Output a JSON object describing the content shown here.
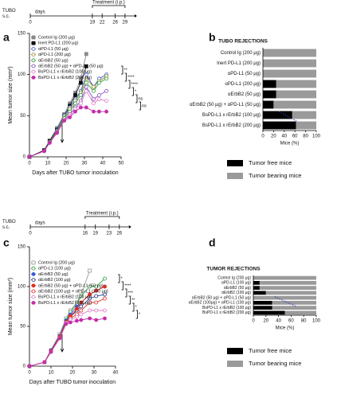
{
  "chart_data": [
    {
      "type": "line",
      "panel": "a",
      "timeline": {
        "start_label": "TUBO\ns.c.",
        "unit": "days",
        "treatment": "Treatment (i.p.)",
        "days": [
          0,
          19,
          22,
          26,
          29
        ]
      },
      "xlabel": "Days after TUBO tumor inoculation",
      "ylabel": "Mean tumor size (mm²)",
      "xlim": [
        0,
        50
      ],
      "xticks": [
        0,
        10,
        20,
        30,
        40,
        50
      ],
      "ylim": [
        0,
        150
      ],
      "yticks": [
        0,
        50,
        100,
        150
      ],
      "x": [
        0,
        8,
        11,
        15,
        19,
        22,
        25,
        28,
        31,
        35,
        38,
        42
      ],
      "series": [
        {
          "name": "Control Ig (200 μg)",
          "color": "#888888",
          "marker": "square",
          "filled": true,
          "values": [
            0,
            8,
            20,
            35,
            52,
            65,
            78,
            95,
            125,
            null,
            null,
            null
          ]
        },
        {
          "name": "Inert PD-L1 (200 μg)",
          "color": "#111111",
          "marker": "square",
          "filled": true,
          "values": [
            0,
            8,
            19,
            33,
            50,
            62,
            75,
            90,
            110,
            null,
            null,
            null
          ]
        },
        {
          "name": "αPD-L1 (50 μg)",
          "color": "#3b5bd6",
          "marker": "circle",
          "filled": false,
          "values": [
            0,
            7,
            18,
            32,
            50,
            60,
            70,
            80,
            100,
            85,
            95,
            100
          ]
        },
        {
          "name": "αPD-L1 (200 μg)",
          "color": "#9a8a2a",
          "marker": "circle",
          "filled": false,
          "values": [
            0,
            7,
            18,
            31,
            48,
            58,
            68,
            78,
            95,
            85,
            92,
            98
          ]
        },
        {
          "name": "αErbB2 (50 μg)",
          "color": "#2e9e3e",
          "marker": "circle",
          "filled": false,
          "values": [
            0,
            7,
            18,
            30,
            47,
            55,
            65,
            75,
            90,
            80,
            90,
            95
          ]
        },
        {
          "name": "αErbB2 (50 μg) + αPD-L1 (50 μg)",
          "color": "#8a4fc0",
          "marker": "circle",
          "filled": false,
          "values": [
            0,
            7,
            17,
            30,
            45,
            52,
            60,
            68,
            85,
            70,
            75,
            80
          ]
        },
        {
          "name": "BsPD-L1 x rErbB2 (100 μg)",
          "color": "#e07ac8",
          "marker": "circle",
          "filled": false,
          "values": [
            0,
            7,
            17,
            29,
            45,
            50,
            58,
            65,
            80,
            65,
            70,
            68
          ]
        },
        {
          "name": "BsPD-L1 x rErbB2 (200 μg)",
          "color": "#c42fa8",
          "marker": "circle",
          "filled": true,
          "values": [
            0,
            7,
            17,
            29,
            44,
            48,
            55,
            60,
            60,
            55,
            55,
            55
          ]
        }
      ],
      "annotations": [
        "**",
        "****",
        "****",
        "*",
        "ns",
        "ns"
      ]
    },
    {
      "type": "barh",
      "panel": "b",
      "title": "TUBO REJECTIONS",
      "xlabel": "Mice (%)",
      "xlim": [
        0,
        100
      ],
      "xticks": [
        0,
        20,
        40,
        60,
        80,
        100
      ],
      "categories": [
        "Control Ig (200 μg)",
        "Inert PD-L1 (200 μg)",
        "αPD-L1 (50 μg)",
        "αPD-L1 (200 μg)",
        "αErbB2 (50 μg)",
        "αErbB2 (50 μg) + αPD-L1 (50 μg)",
        "BsPD-L1 x rErbB2 (100 μg)",
        "BsPD-L1 x rErbB2 (200 μg)"
      ],
      "series": [
        {
          "name": "Tumor free mice",
          "color": "#000000",
          "values": [
            0,
            0,
            0,
            25,
            25,
            20,
            55,
            62
          ]
        },
        {
          "name": "Tumor bearing mice",
          "color": "#9a9a9a",
          "values": [
            100,
            100,
            100,
            75,
            75,
            80,
            45,
            38
          ]
        }
      ]
    },
    {
      "type": "line",
      "panel": "c",
      "timeline": {
        "start_label": "TUBO\ns.c.",
        "unit": "days",
        "treatment": "Treatment (i.p.)",
        "days": [
          0,
          16,
          19,
          23,
          26
        ]
      },
      "xlabel": "Days after TUBO tumor inoculation",
      "ylabel": "Mean tumor size (mm²)",
      "xlim": [
        0,
        40
      ],
      "xticks": [
        0,
        10,
        20,
        30,
        40
      ],
      "ylim": [
        0,
        150
      ],
      "yticks": [
        0,
        50,
        100,
        150
      ],
      "x": [
        0,
        7,
        10,
        14,
        17,
        19,
        22,
        24,
        28,
        31,
        35
      ],
      "series": [
        {
          "name": "Control Ig (200 μg)",
          "color": "#999999",
          "marker": "square",
          "filled": false,
          "values": [
            0,
            5,
            20,
            40,
            60,
            70,
            80,
            90,
            120,
            null,
            null
          ]
        },
        {
          "name": "αPD-L1 (100 μg)",
          "color": "#2e9e3e",
          "marker": "circle",
          "filled": false,
          "values": [
            0,
            5,
            20,
            38,
            58,
            68,
            78,
            88,
            100,
            100,
            110
          ]
        },
        {
          "name": "αErbB2 (50 μg)",
          "color": "#3b5bd6",
          "marker": "circle",
          "filled": true,
          "values": [
            0,
            5,
            20,
            38,
            57,
            65,
            75,
            80,
            90,
            95,
            100
          ]
        },
        {
          "name": "αErbB2 (100 μg)",
          "color": "#1f2f8a",
          "marker": "circle",
          "filled": false,
          "values": [
            0,
            5,
            19,
            37,
            56,
            62,
            70,
            75,
            85,
            88,
            90
          ]
        },
        {
          "name": "αErbB2 (50 μg) + αPD-L1 (50 μg)",
          "color": "#e03020",
          "marker": "circle",
          "filled": true,
          "values": [
            0,
            5,
            19,
            37,
            55,
            63,
            72,
            80,
            90,
            95,
            100
          ]
        },
        {
          "name": "αErbB2 (100 μg) + αPD-L1 (100 μg)",
          "color": "#e03020",
          "marker": "circle",
          "filled": false,
          "values": [
            0,
            5,
            18,
            36,
            55,
            60,
            65,
            70,
            80,
            80,
            85
          ]
        },
        {
          "name": "BsPD-L1 x rErbB2 (100 μg)",
          "color": "#e07ac8",
          "marker": "circle",
          "filled": false,
          "values": [
            0,
            5,
            18,
            35,
            54,
            58,
            62,
            65,
            70,
            70,
            70
          ]
        },
        {
          "name": "BsPD-L1 x rErbB2 (200 μg)",
          "color": "#c42fa8",
          "marker": "circle",
          "filled": true,
          "values": [
            0,
            5,
            18,
            35,
            53,
            55,
            57,
            58,
            60,
            58,
            60
          ]
        }
      ],
      "annotations": [
        "*",
        "****",
        "***",
        "**",
        "*",
        "*"
      ]
    },
    {
      "type": "barh",
      "panel": "d",
      "title": "TUMOR  REJECTIONS",
      "xlabel": "Mice (%)",
      "xlim": [
        0,
        100
      ],
      "xticks": [
        0,
        20,
        40,
        60,
        80,
        100
      ],
      "categories": [
        "Control Ig (200 μg)",
        "αPD-L1 (100 μg)",
        "αErbB2 (50 μg)",
        "αErbB2 (100 μg)",
        "αErbB2 (50 μg) + αPD-L1 (50 μg)",
        "αErbB2 (100μg) + αPD-L1 (100 μg)",
        "BsPD-L1 x rErbB2 (100 μg)",
        "BsPD-L1 x rErbB2 (200 μg)"
      ],
      "series": [
        {
          "name": "Tumor free mice",
          "color": "#000000",
          "values": [
            0,
            10,
            10,
            20,
            0,
            30,
            30,
            50
          ]
        },
        {
          "name": "Tumor bearing mice",
          "color": "#9a9a9a",
          "values": [
            100,
            90,
            90,
            80,
            100,
            70,
            70,
            50
          ]
        }
      ]
    }
  ]
}
